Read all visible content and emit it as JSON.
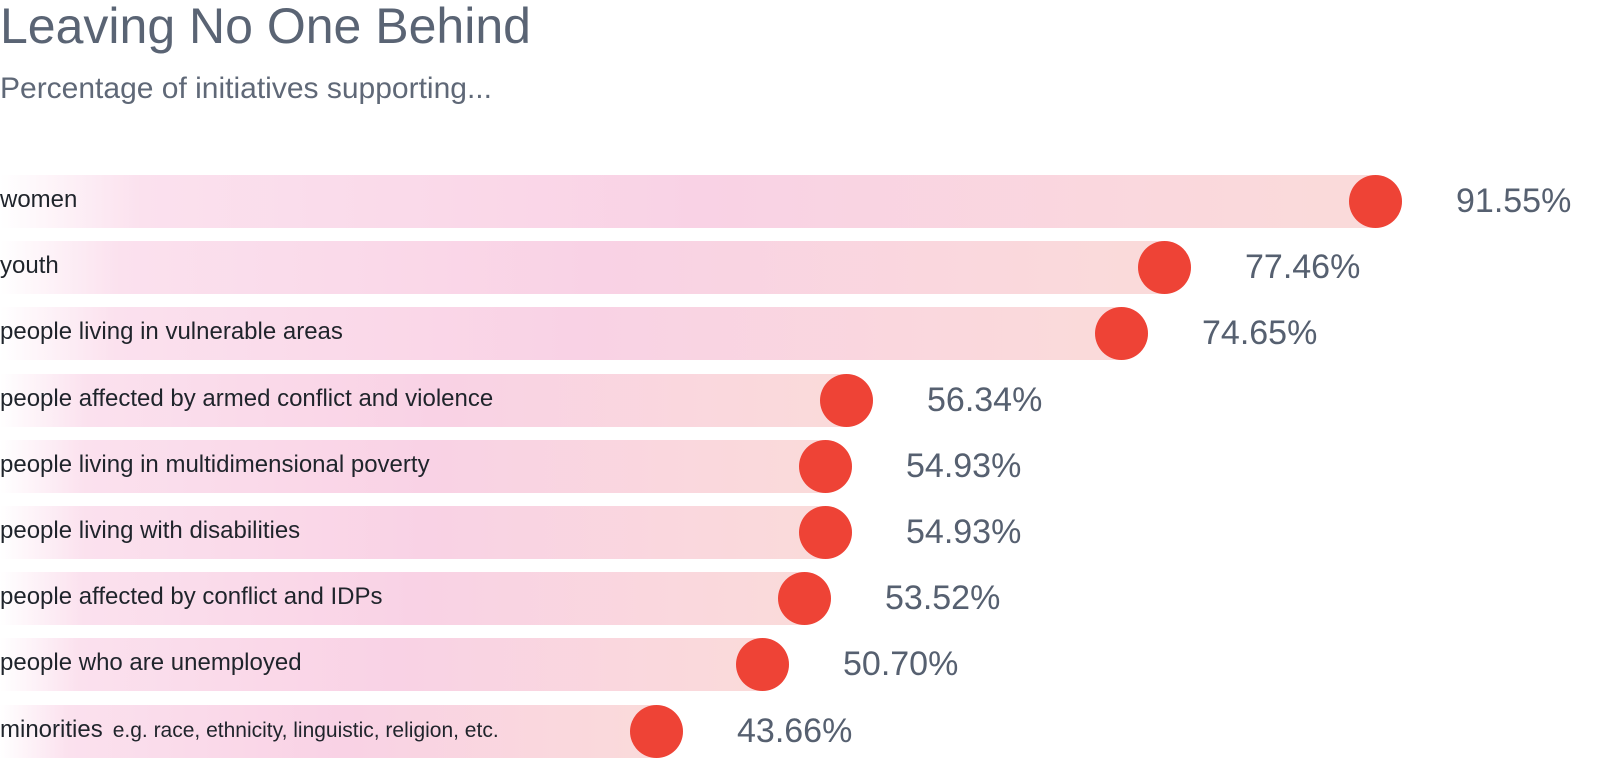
{
  "chart_data": {
    "type": "bar",
    "title": "Leaving No One Behind",
    "subtitle": "Percentage of initiatives supporting...",
    "categories": [
      "women",
      "youth",
      "people living in vulnerable areas",
      "people affected by armed conflict and violence",
      "people living in multidimensional poverty",
      "people living with disabilities",
      "people affected by conflict and IDPs",
      "people who are unemployed",
      "minorities"
    ],
    "notes": [
      "",
      "",
      "",
      "",
      "",
      "",
      "",
      "",
      "e.g. race, ethnicity, linguistic, religion, etc."
    ],
    "values": [
      91.55,
      77.46,
      74.65,
      56.34,
      54.93,
      54.93,
      53.52,
      50.7,
      43.66
    ],
    "value_labels": [
      "91.55%",
      "77.46%",
      "74.65%",
      "56.34%",
      "54.93%",
      "54.93%",
      "53.52%",
      "50.70%",
      "43.66%"
    ],
    "xlim": [
      0,
      100
    ],
    "grid": false,
    "legend": "none",
    "colors": {
      "marker": "#ee4336",
      "bar_start": "#fbe1ee",
      "bar_mid": "#f9d2e5",
      "bar_end": "#fadbd9",
      "title": "#5a6474",
      "label": "#1f242b",
      "value": "#566070"
    }
  }
}
